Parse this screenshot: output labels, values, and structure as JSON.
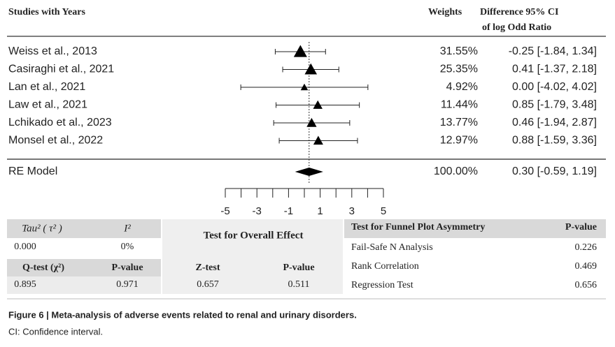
{
  "chart_data": {
    "type": "forest",
    "headers": {
      "studies": "Studies with Years",
      "weights": "Weights",
      "difference": "Difference 95% CI",
      "difference_sub": "of log Odd Ratio"
    },
    "studies": [
      "Weiss et  al., 2013",
      "Casiraghi  et al., 2021",
      "Lan et al., 2021",
      "Law et al., 2021",
      "Lchikado et al., 2023",
      "Monsel et al., 2022"
    ],
    "estimates": [
      -0.25,
      0.41,
      0,
      0.85,
      0.46,
      0.88
    ],
    "lower": [
      -1.84,
      -1.37,
      -4.02,
      -1.79,
      -1.94,
      -1.59
    ],
    "upper": [
      1.34,
      2.18,
      4.02,
      3.48,
      2.87,
      3.36
    ],
    "weights": [
      31.55,
      25.35,
      4.92,
      11.44,
      13.77,
      12.97
    ],
    "weight_labels": [
      "31.55%",
      "25.35%",
      "4.92%",
      "11.44%",
      "13.77%",
      "12.97%"
    ],
    "ci_labels": [
      "-0.25 [-1.84, 1.34]",
      "0.41 [-1.37, 2.18]",
      "0.00 [-4.02, 4.02]",
      "0.85 [-1.79, 3.48]",
      "0.46 [-1.94, 2.87]",
      "0.88 [-1.59, 3.36]"
    ],
    "summary": {
      "name": "RE Model",
      "estimate": 0.3,
      "lower": -0.59,
      "upper": 1.19,
      "weight": 100,
      "weight_label": "100.00%",
      "ci_label": "0.30 [-0.59, 1.19]"
    },
    "xlim": [
      -5,
      5
    ],
    "xticks": [
      -5,
      -3,
      -1,
      1,
      3,
      5
    ],
    "xminorticks": [
      -4,
      -2,
      0,
      2,
      4
    ],
    "color": "#000000"
  },
  "tables": {
    "heterogeneity": {
      "headers": [
        "Tau² ( τ² )",
        "I²"
      ],
      "values": [
        "0.000",
        "0%"
      ],
      "headers2": [
        "Q-test (χ²)",
        "P-value"
      ],
      "values2": [
        "0.895",
        "0.971"
      ]
    },
    "overall": {
      "title": "Test for Overall Effect",
      "headers": [
        "Z-test",
        "P-value"
      ],
      "values": [
        "0.657",
        "0.511"
      ]
    },
    "funnel": {
      "headers": [
        "Test for Funnel Plot Asymmetry",
        "P-value"
      ],
      "rows": [
        [
          "Fail-Safe N Analysis",
          "0.226"
        ],
        [
          "Rank Correlation",
          "0.469"
        ],
        [
          "Regression Test",
          "0.656"
        ]
      ]
    }
  },
  "caption": {
    "title": "Figure 6  |  Meta-analysis of adverse events related to renal and urinary disorders.",
    "note": "CI: Confidence interval."
  }
}
